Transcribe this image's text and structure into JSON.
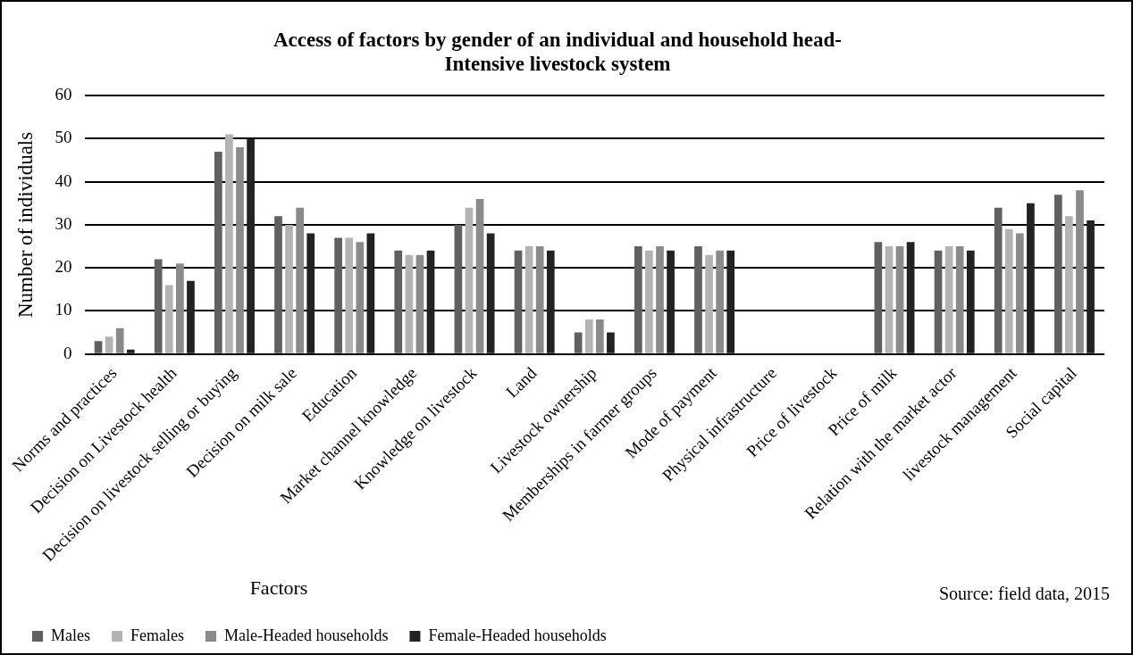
{
  "chart_data": {
    "type": "bar",
    "title": "Access of factors by gender of an individual and household head-\nIntensive livestock system",
    "xlabel": "Factors",
    "ylabel": "Number of individuals",
    "categories": [
      "Norms and practices",
      "Decision on Livestock health",
      "Decision on livestock selling or buying",
      "Decision on milk sale",
      "Education",
      "Market channel knowledge",
      "Knowledge on livestock",
      "Land",
      "Livestock ownership",
      "Memberships in farmer groups",
      "Mode of payment",
      "Physical infrastructure",
      "Price of livestock",
      "Price of milk",
      "Relation with the market actor",
      "livestock management",
      "Social capital"
    ],
    "series": [
      {
        "name": "Males",
        "color": "#606060",
        "values": [
          3,
          22,
          47,
          32,
          27,
          24,
          30,
          24,
          5,
          25,
          25,
          0,
          0,
          26,
          24,
          34,
          37
        ]
      },
      {
        "name": "Females",
        "color": "#b3b3b3",
        "values": [
          4,
          16,
          51,
          30,
          27,
          23,
          34,
          25,
          8,
          24,
          23,
          0,
          0,
          25,
          25,
          29,
          32
        ]
      },
      {
        "name": "Male-Headed households",
        "color": "#8a8a8a",
        "values": [
          6,
          21,
          48,
          34,
          26,
          23,
          36,
          25,
          8,
          25,
          24,
          0,
          0,
          25,
          25,
          28,
          38
        ]
      },
      {
        "name": "Female-Headed households",
        "color": "#222222",
        "values": [
          1,
          17,
          50,
          28,
          28,
          24,
          28,
          24,
          5,
          24,
          24,
          0,
          0,
          26,
          24,
          35,
          31
        ]
      }
    ],
    "ylim": [
      0,
      60
    ],
    "yticks": [
      0,
      10,
      20,
      30,
      40,
      50,
      60
    ],
    "grid": "y",
    "legend": "bottom left",
    "annotations": [
      "Source: field data, 2015"
    ]
  }
}
